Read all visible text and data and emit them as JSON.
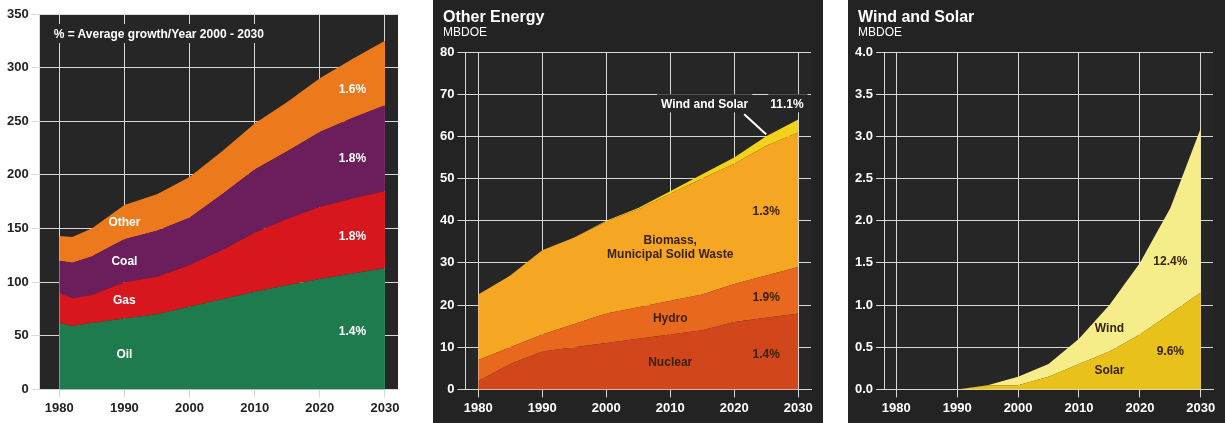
{
  "chart_data": [
    {
      "type": "area",
      "stacked": true,
      "grid": true,
      "legend": false,
      "x": [
        1980,
        1982,
        1985,
        1990,
        1995,
        2000,
        2005,
        2010,
        2015,
        2020,
        2025,
        2030
      ],
      "xlim": [
        1977,
        2032
      ],
      "xticks": [
        1980,
        1990,
        2000,
        2010,
        2020,
        2030
      ],
      "ylim": [
        0,
        350
      ],
      "yticks": [
        0,
        50,
        100,
        150,
        200,
        250,
        300,
        350
      ],
      "series": [
        {
          "name": "Oil",
          "color": "#1e7b4e",
          "values": [
            62,
            59,
            62,
            66,
            70,
            77,
            84,
            91,
            97,
            103,
            108,
            113
          ]
        },
        {
          "name": "Gas",
          "color": "#d8161e",
          "values": [
            28,
            26,
            26,
            34,
            35,
            39,
            46,
            55,
            62,
            67,
            70,
            72
          ]
        },
        {
          "name": "Coal",
          "color": "#6b1d5c",
          "values": [
            30,
            33,
            36,
            40,
            43,
            44,
            52,
            59,
            63,
            70,
            75,
            80
          ]
        },
        {
          "name": "Other",
          "color": "#ec7a1c",
          "values": [
            23,
            24,
            26,
            32,
            34,
            38,
            40,
            43,
            46,
            50,
            55,
            60
          ]
        }
      ],
      "annotations": [
        "% = Average growth/Year 2000 - 2030",
        "1.6%",
        "1.8%",
        "1.8%",
        "1.4%"
      ]
    },
    {
      "type": "area",
      "stacked": true,
      "grid": true,
      "legend": false,
      "title": "Other Energy",
      "ylabel": "MBDOE",
      "x": [
        1980,
        1985,
        1990,
        1995,
        2000,
        2005,
        2010,
        2015,
        2020,
        2025,
        2030
      ],
      "xlim": [
        1978,
        2032
      ],
      "xticks": [
        1980,
        1990,
        2000,
        2010,
        2020,
        2030
      ],
      "ylim": [
        0,
        80
      ],
      "yticks": [
        0,
        10,
        20,
        30,
        40,
        50,
        60,
        70,
        80
      ],
      "series": [
        {
          "name": "Nuclear",
          "color": "#d2461c",
          "values": [
            2,
            6,
            9,
            10,
            11,
            12,
            13,
            14,
            16,
            17,
            18
          ]
        },
        {
          "name": "Hydro",
          "color": "#e8691e",
          "values": [
            5,
            4,
            4,
            5.5,
            7,
            7.5,
            8,
            8.5,
            9,
            10,
            11
          ]
        },
        {
          "name": "Biomass, Municipal Solid Waste",
          "color": "#f5a623",
          "values": [
            15.5,
            17,
            20,
            20.5,
            21.8,
            23.2,
            25.4,
            27.5,
            28.5,
            30.8,
            31.9
          ]
        },
        {
          "name": "Wind and Solar",
          "color": "#f2d21a",
          "values": [
            0,
            0,
            0,
            0,
            0.2,
            0.3,
            0.6,
            1.0,
            1.5,
            2.2,
            3.1
          ]
        }
      ],
      "annotations": [
        "11.1%",
        "1.3%",
        "1.9%",
        "1.4%"
      ]
    },
    {
      "type": "area",
      "stacked": true,
      "grid": true,
      "legend": false,
      "title": "Wind and Solar",
      "ylabel": "MBDOE",
      "x": [
        1980,
        1985,
        1990,
        1995,
        2000,
        2005,
        2010,
        2015,
        2020,
        2025,
        2030
      ],
      "xlim": [
        1978,
        2032
      ],
      "xticks": [
        1980,
        1990,
        2000,
        2010,
        2020,
        2030
      ],
      "ylim": [
        0,
        4
      ],
      "yticks": [
        {
          "value": 0,
          "label": "0.0"
        },
        0.5,
        {
          "value": 1,
          "label": "1.0"
        },
        1.5,
        {
          "value": 2,
          "label": "2.0"
        },
        2.5,
        {
          "value": 3,
          "label": "3.0"
        },
        3.5,
        {
          "value": 4,
          "label": "4.0"
        }
      ],
      "series": [
        {
          "name": "Solar",
          "color": "#e8c21a",
          "values": [
            0,
            0,
            0,
            0.05,
            0.05,
            0.15,
            0.3,
            0.45,
            0.65,
            0.9,
            1.15
          ]
        },
        {
          "name": "Wind",
          "color": "#f7ec8a",
          "values": [
            0,
            0,
            0,
            0,
            0.1,
            0.15,
            0.3,
            0.55,
            0.85,
            1.25,
            1.95
          ]
        }
      ],
      "annotations": [
        "12.4%",
        "9.6%"
      ]
    }
  ]
}
